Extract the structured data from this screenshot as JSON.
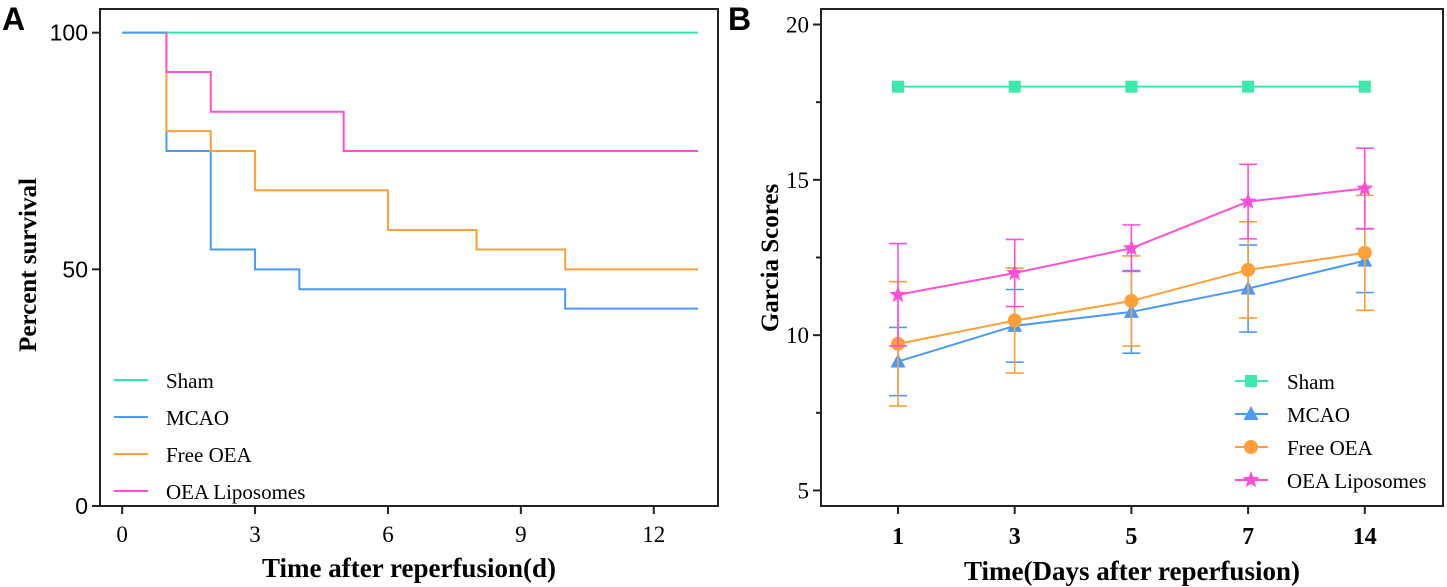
{
  "chart_data": [
    {
      "panel_label": "A",
      "type": "line",
      "subtype": "step (Kaplan-Meier survival)",
      "xlabel": "Time after reperfusion(d)",
      "ylabel": "Percent survival",
      "xlim": [
        -0.5,
        13.45
      ],
      "ylim": [
        0,
        105
      ],
      "xticks": [
        "0",
        "3",
        "6",
        "9",
        "12"
      ],
      "yticks": [
        "0",
        "50",
        "100"
      ],
      "legend_position": "bottom-left",
      "series": [
        {
          "name": "Sham",
          "color": "#2EE8A5",
          "x": [
            0,
            13
          ],
          "y": [
            100,
            100
          ]
        },
        {
          "name": "MCAO",
          "color": "#4A9BF5",
          "x": [
            0,
            1,
            2,
            3,
            4,
            10,
            13
          ],
          "y": [
            100,
            75,
            54.2,
            50,
            45.8,
            41.7,
            41.7
          ]
        },
        {
          "name": "Free OEA",
          "color": "#FF9F3A",
          "x": [
            1,
            2,
            3,
            6,
            8,
            10,
            13
          ],
          "y": [
            79.2,
            75,
            66.7,
            58.3,
            54.2,
            50,
            50
          ]
        },
        {
          "name": "OEA Liposomes",
          "color": "#FF4FD8",
          "x": [
            1,
            2,
            5,
            13
          ],
          "y": [
            91.7,
            83.3,
            75,
            75
          ]
        }
      ]
    },
    {
      "panel_label": "B",
      "type": "line",
      "subtype": "line with error bars",
      "xlabel": "Time(Days after reperfusion)",
      "ylabel": "Garcia Scores",
      "categories": [
        "1",
        "3",
        "5",
        "7",
        "14"
      ],
      "ylim": [
        4.5,
        20.5
      ],
      "yticks": [
        "5",
        "10",
        "15",
        "20"
      ],
      "legend_position": "bottom-right",
      "series": [
        {
          "name": "Sham",
          "color": "#3DE8A8",
          "marker": "square",
          "values": [
            18,
            18,
            18,
            18,
            18
          ],
          "error": [
            0,
            0,
            0,
            0,
            0
          ]
        },
        {
          "name": "MCAO",
          "color": "#4A9BF5",
          "marker": "triangle",
          "values": [
            9.15,
            10.3,
            10.75,
            11.5,
            12.4
          ],
          "error": [
            1.1,
            1.17,
            1.33,
            1.4,
            1.03
          ]
        },
        {
          "name": "Free OEA",
          "color": "#FF9F3A",
          "marker": "circle",
          "values": [
            9.72,
            10.47,
            11.1,
            12.1,
            12.65
          ],
          "error": [
            2.0,
            1.69,
            1.45,
            1.55,
            1.85
          ]
        },
        {
          "name": "OEA Liposomes",
          "color": "#FF4FD8",
          "marker": "star",
          "values": [
            11.3,
            12.0,
            12.8,
            14.3,
            14.72
          ],
          "error": [
            1.65,
            1.08,
            0.75,
            1.2,
            1.3
          ]
        }
      ]
    }
  ]
}
